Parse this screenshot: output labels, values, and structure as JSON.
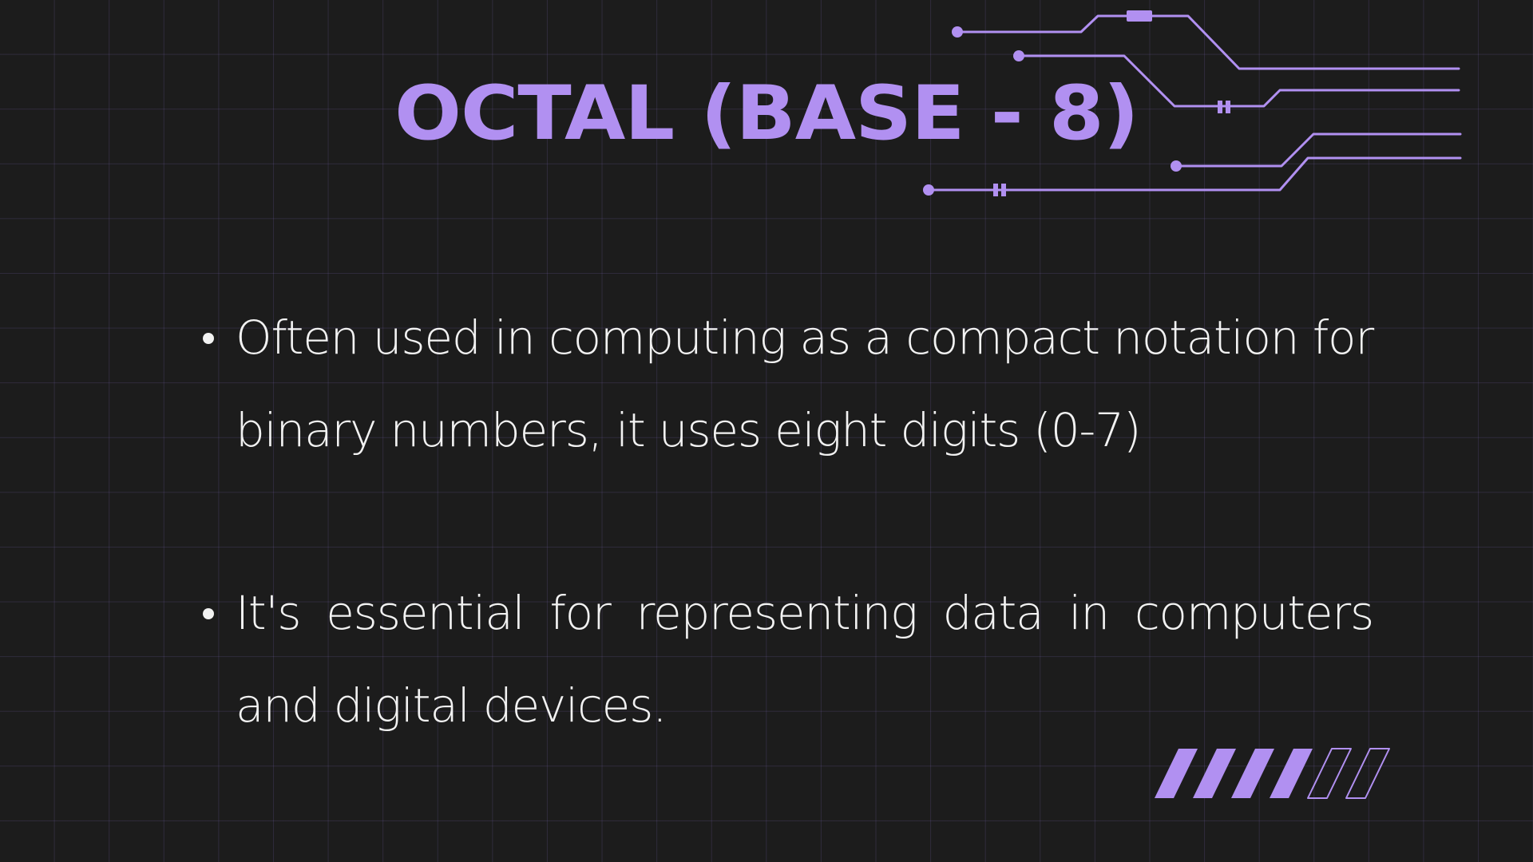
{
  "slide": {
    "title": "OCTAL (BASE - 8)",
    "bullets": [
      {
        "text": "Often used in computing as a compact notation for binary numbers, it uses eight digits (0-7)"
      },
      {
        "text": "It's essential for representing data in computers and digital devices."
      }
    ]
  },
  "theme": {
    "background": "#1c1c1c",
    "accent": "#b190f1",
    "text": "#f2f2f2",
    "grid_line": "#3a3350"
  },
  "decorations": {
    "circuit": "circuit-traces-graphic",
    "stripes": "progress-stripes-graphic",
    "stripes_filled": 4,
    "stripes_total": 6
  }
}
